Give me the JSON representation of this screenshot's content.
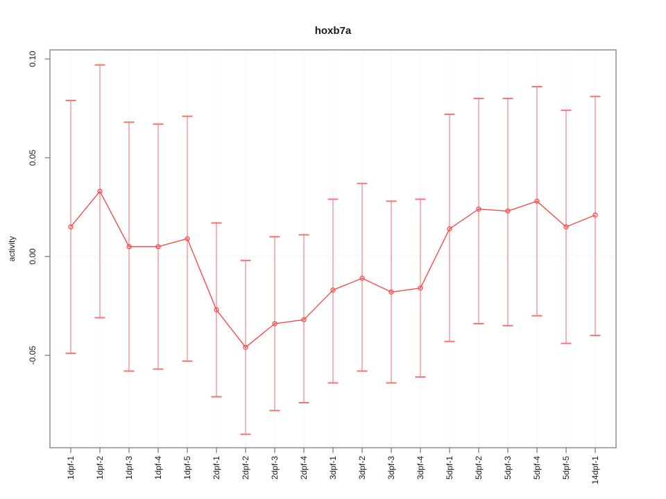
{
  "chart_data": {
    "type": "line",
    "title": "hoxb7a",
    "xlabel": "",
    "ylabel": "activity",
    "legend": "none",
    "categories": [
      "1dpf-1",
      "1dpf-2",
      "1dpf-3",
      "1dpf-4",
      "1dpf-5",
      "2dpf-1",
      "2dpf-2",
      "2dpf-3",
      "2dpf-4",
      "3dpf-1",
      "3dpf-2",
      "3dpf-3",
      "3dpf-4",
      "5dpf-1",
      "5dpf-2",
      "5dpf-3",
      "5dpf-4",
      "5dpf-5",
      "14dpf-1"
    ],
    "series": [
      {
        "name": "activity",
        "values": [
          0.015,
          0.033,
          0.005,
          0.005,
          0.009,
          -0.027,
          -0.046,
          -0.034,
          -0.032,
          -0.017,
          -0.011,
          -0.018,
          -0.016,
          0.014,
          0.024,
          0.023,
          0.028,
          0.015,
          0.021
        ],
        "error_upper": [
          0.079,
          0.097,
          0.068,
          0.067,
          0.071,
          0.017,
          -0.002,
          0.01,
          0.011,
          0.029,
          0.037,
          0.028,
          0.029,
          0.072,
          0.08,
          0.08,
          0.086,
          0.074,
          0.081
        ],
        "error_lower": [
          -0.049,
          -0.031,
          -0.058,
          -0.057,
          -0.053,
          -0.071,
          -0.09,
          -0.078,
          -0.074,
          -0.064,
          -0.058,
          -0.064,
          -0.061,
          -0.043,
          -0.034,
          -0.035,
          -0.03,
          -0.044,
          -0.04
        ]
      }
    ],
    "y_ticks": [
      0.1,
      0.05,
      0.0,
      -0.05
    ],
    "y_tick_labels": [
      "0.10",
      "0.05",
      "0.00",
      "-0.05"
    ],
    "ylim": [
      -0.0968,
      0.1046
    ],
    "grid": {
      "vertical_dotted_per_category": true,
      "horizontal_dotted_at_zero": true
    },
    "marker": "open-circle",
    "colors": {
      "series": "#fa4b4b",
      "error_bar_stem": "#f9a0a0",
      "error_bar_cap": "#f87272",
      "grid": "#dcdcdc",
      "frame": "#858585",
      "text": "#1a1a1a",
      "background": "#ffffff"
    }
  }
}
